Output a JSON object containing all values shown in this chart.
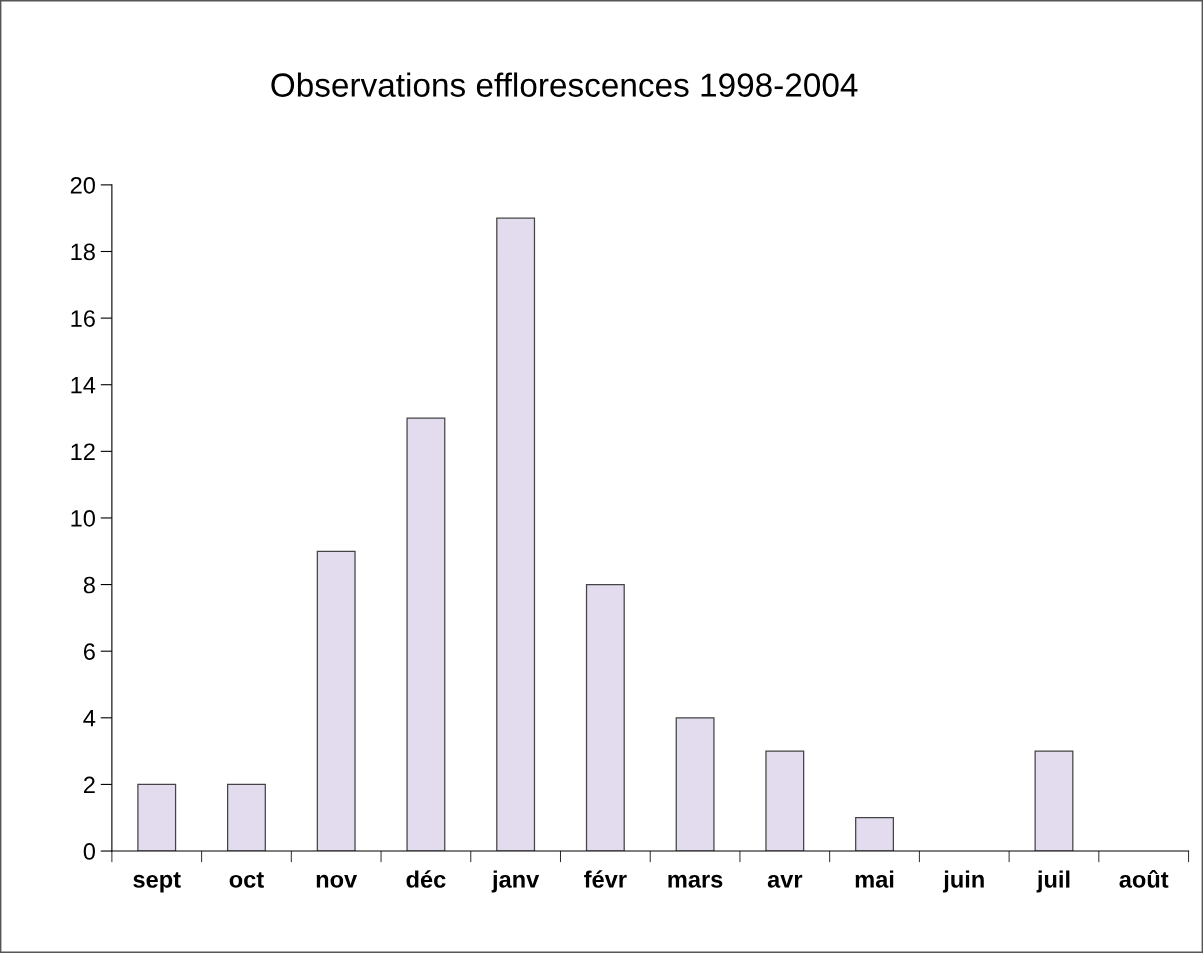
{
  "chart_data": {
    "type": "bar",
    "title": "Observations efflorescences 1998-2004",
    "categories": [
      "sept",
      "oct",
      "nov",
      "déc",
      "janv",
      "févr",
      "mars",
      "avr",
      "mai",
      "juin",
      "juil",
      "août"
    ],
    "values": [
      2,
      2,
      9,
      13,
      19,
      8,
      4,
      3,
      1,
      0,
      3,
      0
    ],
    "color": "#e2dcee",
    "ylim": [
      0,
      20
    ],
    "yticks": [
      0,
      2,
      4,
      6,
      8,
      10,
      12,
      14,
      16,
      18,
      20
    ],
    "grid": false,
    "legend": false
  }
}
